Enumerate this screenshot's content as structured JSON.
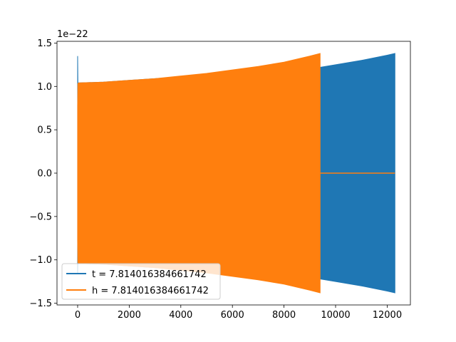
{
  "chart_data": {
    "type": "line",
    "title": "",
    "xlabel": "",
    "ylabel": "",
    "y_offset_text": "1e−22",
    "xlim": [
      -800,
      12900
    ],
    "ylim": [
      -1.52,
      1.52
    ],
    "x_ticks": [
      0,
      2000,
      4000,
      6000,
      8000,
      10000,
      12000
    ],
    "x_tick_labels": [
      "0",
      "2000",
      "4000",
      "6000",
      "8000",
      "10000",
      "12000"
    ],
    "y_ticks": [
      -1.5,
      -1.0,
      -0.5,
      0.0,
      0.5,
      1.0,
      1.5
    ],
    "y_tick_labels": [
      "−1.5",
      "−1.0",
      "−0.5",
      "0.0",
      "0.5",
      "1.0",
      "1.5"
    ],
    "grid": false,
    "legend_position": "lower-left",
    "series": [
      {
        "name": "t = 7.814016384661742",
        "color": "#1f77b4",
        "envelope": {
          "x": [
            0,
            10,
            30,
            1000,
            2000,
            3000,
            4000,
            5000,
            6000,
            7000,
            8000,
            9000,
            9400,
            10000,
            11000,
            12000,
            12300
          ],
          "upper": [
            1.35,
            1.03,
            1.04,
            1.05,
            1.07,
            1.09,
            1.11,
            1.13,
            1.15,
            1.18,
            1.2,
            1.21,
            1.22,
            1.25,
            1.3,
            1.36,
            1.38
          ],
          "lower": [
            -1.15,
            -1.03,
            -1.04,
            -1.05,
            -1.07,
            -1.09,
            -1.11,
            -1.13,
            -1.15,
            -1.18,
            -1.2,
            -1.21,
            -1.22,
            -1.25,
            -1.3,
            -1.36,
            -1.38
          ]
        }
      },
      {
        "name": "h = 7.814016384661742",
        "color": "#ff7f0e",
        "envelope": {
          "x": [
            0,
            10,
            30,
            1000,
            2000,
            3000,
            4000,
            5000,
            6000,
            7000,
            8000,
            9000,
            9400
          ],
          "upper": [
            0.78,
            1.03,
            1.04,
            1.05,
            1.07,
            1.09,
            1.12,
            1.15,
            1.19,
            1.23,
            1.28,
            1.35,
            1.38
          ],
          "lower": [
            -0.78,
            -1.03,
            -1.04,
            -1.05,
            -1.07,
            -1.09,
            -1.12,
            -1.15,
            -1.19,
            -1.23,
            -1.28,
            -1.35,
            -1.38
          ]
        },
        "tail": {
          "x": [
            9400,
            12300
          ],
          "y": [
            0.0,
            0.0
          ]
        }
      }
    ]
  }
}
